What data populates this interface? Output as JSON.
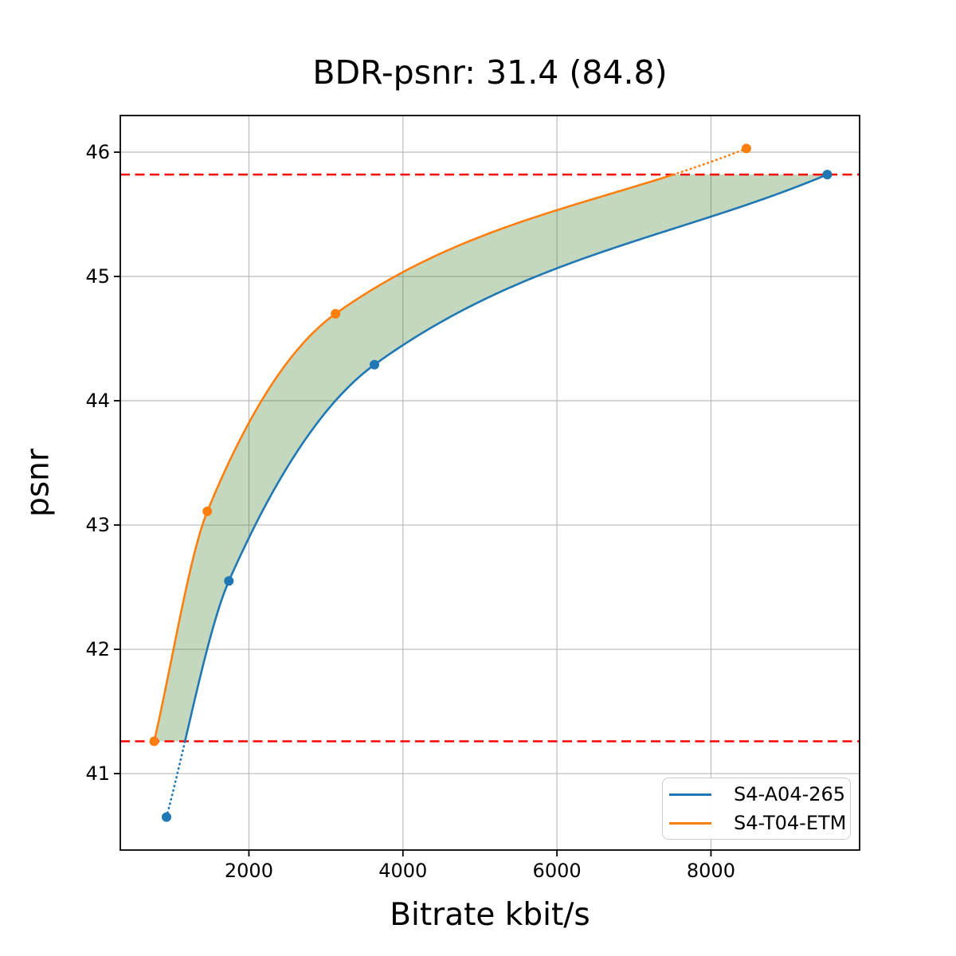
{
  "title": "BDR-psnr: 31.4 (84.8)",
  "axes": {
    "xlabel": "Bitrate kbit/s",
    "ylabel": "psnr"
  },
  "legend": {
    "items": [
      {
        "label": "S4-A04-265",
        "color": "#1f77b4"
      },
      {
        "label": "S4-T04-ETM",
        "color": "#ff7f0e"
      }
    ]
  },
  "chart_data": {
    "type": "line",
    "title": "BDR-psnr: 31.4 (84.8)",
    "xlabel": "Bitrate kbit/s",
    "ylabel": "psnr",
    "xlim": [
      330,
      9930
    ],
    "ylim": [
      40.385,
      46.295
    ],
    "xticks": [
      2000,
      4000,
      6000,
      8000
    ],
    "yticks": [
      41,
      42,
      43,
      44,
      45,
      46
    ],
    "grid": true,
    "grid_color": "#bbbbbb",
    "legend_position": "lower right",
    "series": [
      {
        "name": "S4-A04-265",
        "color": "#1f77b4",
        "x": [
          930,
          1740,
          3630,
          9510
        ],
        "y": [
          40.65,
          42.55,
          44.29,
          45.82
        ]
      },
      {
        "name": "S4-T04-ETM",
        "color": "#ff7f0e",
        "x": [
          770,
          1460,
          3125,
          8460
        ],
        "y": [
          41.26,
          43.11,
          44.7,
          46.03
        ]
      }
    ],
    "overlap_lines": {
      "color": "#ff0000",
      "style": "dashed",
      "y": [
        41.26,
        45.82
      ]
    },
    "fill_between_color": "rgba(60,125,45,0.30)",
    "bdr_value": "31.4",
    "bdr_secondary": "84.8"
  }
}
